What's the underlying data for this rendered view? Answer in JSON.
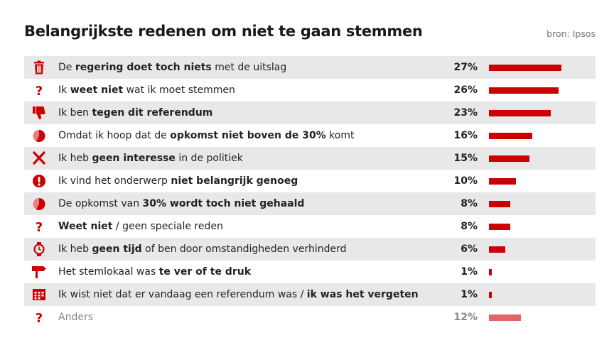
{
  "title": "Belangrijkste redenen om niet te gaan stemmen",
  "source": "bron: Ipsos",
  "colors": {
    "bar": "#cc0000",
    "bar_muted": "#e06666",
    "icon": "#cc0000",
    "row_alt": "#e8e8e8"
  },
  "chart_data": {
    "type": "bar",
    "orientation": "horizontal",
    "title": "Belangrijkste redenen om niet te gaan stemmen",
    "unit": "%",
    "xlim": [
      0,
      28
    ],
    "categories": [
      "De regering doet toch niets met de uitslag",
      "Ik weet niet wat ik moet stemmen",
      "Ik ben tegen dit referendum",
      "Omdat ik hoop dat de opkomst niet boven de 30% komt",
      "Ik heb geen interesse in de politiek",
      "Ik vind het onderwerp niet belangrijk genoeg",
      "De opkomst van 30% wordt toch niet gehaald",
      "Weet niet / geen speciale reden",
      "Ik heb geen tijd of ben door omstandigheden verhinderd",
      "Het stemlokaal was te ver of te druk",
      "Ik wist niet dat er vandaag een referendum was / ik was het vergeten",
      "Anders"
    ],
    "values": [
      27,
      26,
      23,
      16,
      15,
      10,
      8,
      8,
      6,
      1,
      1,
      12
    ],
    "rows": [
      {
        "icon": "trash-icon",
        "segments": [
          {
            "t": "De "
          },
          {
            "t": "regering doet toch niets",
            "b": true
          },
          {
            "t": " met de uitslag"
          }
        ],
        "value": 27,
        "label": "27%"
      },
      {
        "icon": "question-icon",
        "segments": [
          {
            "t": "Ik "
          },
          {
            "t": "weet niet",
            "b": true
          },
          {
            "t": " wat ik moet stemmen"
          }
        ],
        "value": 26,
        "label": "26%"
      },
      {
        "icon": "thumbs-down-icon",
        "segments": [
          {
            "t": "Ik ben "
          },
          {
            "t": "tegen dit referendum",
            "b": true
          }
        ],
        "value": 23,
        "label": "23%"
      },
      {
        "icon": "pie-icon",
        "segments": [
          {
            "t": "Omdat ik hoop dat de "
          },
          {
            "t": "opkomst niet boven de 30%",
            "b": true
          },
          {
            "t": " komt"
          }
        ],
        "value": 16,
        "label": "16%"
      },
      {
        "icon": "x-icon",
        "segments": [
          {
            "t": "Ik heb "
          },
          {
            "t": "geen interesse",
            "b": true
          },
          {
            "t": " in de politiek"
          }
        ],
        "value": 15,
        "label": "15%"
      },
      {
        "icon": "exclamation-icon",
        "segments": [
          {
            "t": "Ik vind het onderwerp "
          },
          {
            "t": "niet belangrijk genoeg",
            "b": true
          }
        ],
        "value": 10,
        "label": "10%"
      },
      {
        "icon": "pie-icon",
        "segments": [
          {
            "t": "De opkomst van "
          },
          {
            "t": "30% wordt toch niet gehaald",
            "b": true
          }
        ],
        "value": 8,
        "label": "8%"
      },
      {
        "icon": "question-icon",
        "segments": [
          {
            "t": "Weet niet",
            "b": true
          },
          {
            "t": " / geen speciale reden"
          }
        ],
        "value": 8,
        "label": "8%"
      },
      {
        "icon": "watch-icon",
        "segments": [
          {
            "t": "Ik heb "
          },
          {
            "t": "geen tijd",
            "b": true
          },
          {
            "t": " of ben door omstandigheden verhinderd"
          }
        ],
        "value": 6,
        "label": "6%"
      },
      {
        "icon": "signpost-icon",
        "segments": [
          {
            "t": "Het stemlokaal was "
          },
          {
            "t": "te ver of te druk",
            "b": true
          }
        ],
        "value": 1,
        "label": "1%"
      },
      {
        "icon": "calendar-icon",
        "segments": [
          {
            "t": "Ik wist niet dat er vandaag een referendum was / "
          },
          {
            "t": "ik was het vergeten",
            "b": true
          }
        ],
        "value": 1,
        "label": "1%"
      },
      {
        "icon": "question-icon",
        "segments": [
          {
            "t": "Anders"
          }
        ],
        "value": 12,
        "label": "12%",
        "muted": true
      }
    ]
  }
}
